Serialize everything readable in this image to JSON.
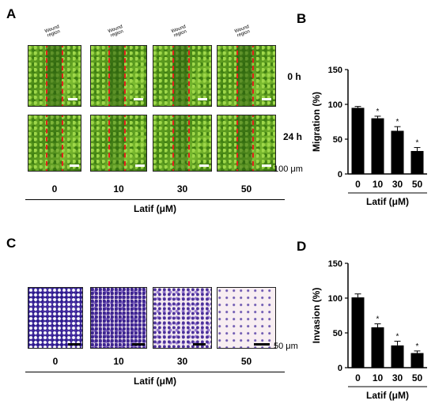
{
  "panels": {
    "A": "A",
    "B": "B",
    "C": "C",
    "D": "D"
  },
  "wound_label": "Wound region",
  "time_labels": [
    "0 h",
    "24 h"
  ],
  "scale_A": "100 μm",
  "scale_C": "50 μm",
  "doses": [
    "0",
    "10",
    "30",
    "50"
  ],
  "xlabel_common": "Latif (μM)",
  "chart_data": [
    {
      "type": "bar",
      "panel": "B",
      "categories": [
        "0",
        "10",
        "30",
        "50"
      ],
      "values": [
        95,
        80,
        62,
        33
      ],
      "errors": [
        2,
        3,
        6,
        5
      ],
      "significance": [
        "",
        "*",
        "*",
        "*"
      ],
      "ylabel": "Migration (%)",
      "xlabel": "Latif (μM)",
      "ylim": [
        0,
        150
      ],
      "yticks": [
        0,
        50,
        100,
        150
      ],
      "bar_color": "#000000"
    },
    {
      "type": "bar",
      "panel": "D",
      "categories": [
        "0",
        "10",
        "30",
        "50"
      ],
      "values": [
        101,
        58,
        32,
        21
      ],
      "errors": [
        5,
        5,
        6,
        3
      ],
      "significance": [
        "",
        "*",
        "*",
        "*"
      ],
      "ylabel": "Invasion (%)",
      "xlabel": "Latif (μM)",
      "ylim": [
        0,
        150
      ],
      "yticks": [
        0,
        50,
        100,
        150
      ],
      "bar_color": "#000000"
    }
  ]
}
